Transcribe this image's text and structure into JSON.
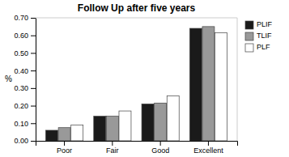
{
  "chart_data": {
    "type": "bar",
    "title": "Follow Up after five years",
    "ylabel": "%",
    "categories": [
      "Poor",
      "Fair",
      "Good",
      "Excellent"
    ],
    "series": [
      {
        "name": "PLIF",
        "color": "#1a1a1a",
        "values": [
          0.06,
          0.14,
          0.21,
          0.64
        ]
      },
      {
        "name": "TLIF",
        "color": "#999999",
        "values": [
          0.075,
          0.14,
          0.215,
          0.65
        ]
      },
      {
        "name": "PLF",
        "color": "#ffffff",
        "values": [
          0.09,
          0.17,
          0.255,
          0.615
        ]
      }
    ],
    "ylim": [
      0.0,
      0.7
    ],
    "yticks": [
      {
        "value": 0.0,
        "label": "0.00"
      },
      {
        "value": 0.1,
        "label": "0.10"
      },
      {
        "value": 0.2,
        "label": "0.20"
      },
      {
        "value": 0.3,
        "label": "0.30"
      },
      {
        "value": 0.4,
        "label": "0.40"
      },
      {
        "value": 0.5,
        "label": "0.50"
      },
      {
        "value": 0.6,
        "label": "0.60"
      },
      {
        "value": 0.7,
        "label": "0.70"
      }
    ],
    "grid": false,
    "legend": "upper right"
  }
}
